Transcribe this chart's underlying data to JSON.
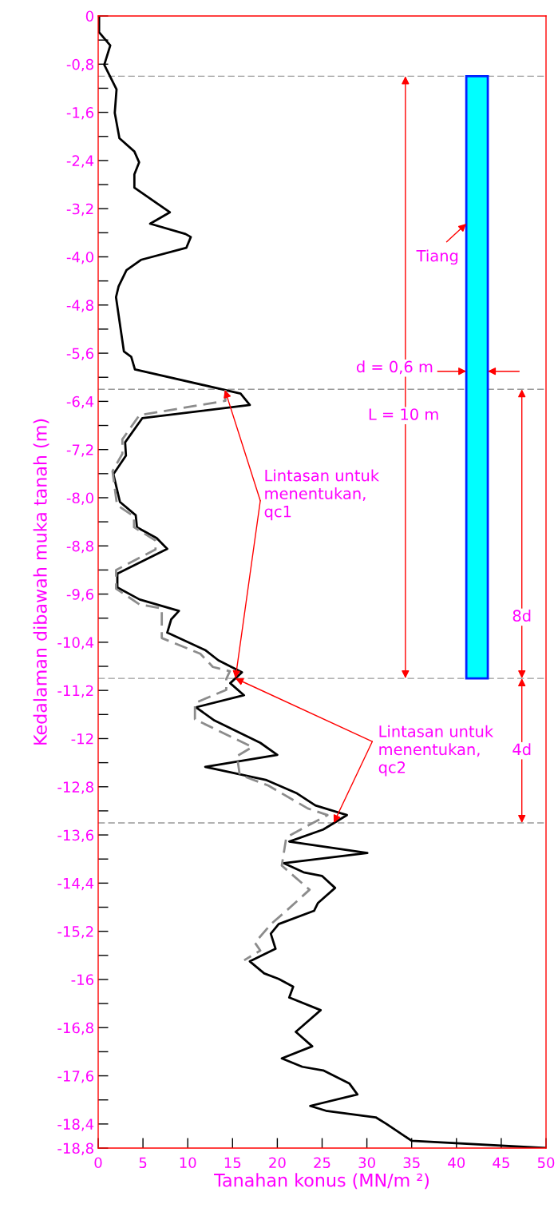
{
  "chart_data": {
    "type": "line",
    "xlabel": "Tanahan konus (MN/m ²)",
    "ylabel": "Kedalaman dibawah muka tanah (m)",
    "xlim": [
      0,
      50
    ],
    "xticks": [
      0,
      5,
      10,
      15,
      20,
      25,
      30,
      35,
      40,
      45,
      50
    ],
    "ylim": [
      -18.8,
      0
    ],
    "yticks": [
      {
        "value": 0,
        "label": "0"
      },
      {
        "value": -0.8,
        "label": "-0,8"
      },
      {
        "value": -1.6,
        "label": "-1,6"
      },
      {
        "value": -2.4,
        "label": "-2,4"
      },
      {
        "value": -3.2,
        "label": "-3,2"
      },
      {
        "value": -4.0,
        "label": "-4,0"
      },
      {
        "value": -4.8,
        "label": "-4,8"
      },
      {
        "value": -5.6,
        "label": "-5,6"
      },
      {
        "value": -6.4,
        "label": "-6,4"
      },
      {
        "value": -7.2,
        "label": "-7,2"
      },
      {
        "value": -8.0,
        "label": "-8,0"
      },
      {
        "value": -8.8,
        "label": "-8,8"
      },
      {
        "value": -9.6,
        "label": "-9,6"
      },
      {
        "value": -10.4,
        "label": "-10,4"
      },
      {
        "value": -11.2,
        "label": "-11,2"
      },
      {
        "value": -12,
        "label": "-12"
      },
      {
        "value": -12.8,
        "label": "-12,8"
      },
      {
        "value": -13.6,
        "label": "-13,6"
      },
      {
        "value": -14.4,
        "label": "-14,4"
      },
      {
        "value": -15.2,
        "label": "-15,2"
      },
      {
        "value": -16,
        "label": "-16"
      },
      {
        "value": -16.8,
        "label": "-16,8"
      },
      {
        "value": -17.6,
        "label": "-17,6"
      },
      {
        "value": -18.4,
        "label": "-18,4"
      },
      {
        "value": -18.8,
        "label": "-18,8"
      },
      {
        "value": -0.4,
        "label": null
      },
      {
        "value": -1.2,
        "label": null
      },
      {
        "value": -2.0,
        "label": null
      },
      {
        "value": -2.8,
        "label": null
      },
      {
        "value": -3.6,
        "label": null
      },
      {
        "value": -4.4,
        "label": null
      },
      {
        "value": -5.2,
        "label": null
      },
      {
        "value": -6.0,
        "label": null
      },
      {
        "value": -6.8,
        "label": null
      },
      {
        "value": -7.6,
        "label": null
      },
      {
        "value": -8.4,
        "label": null
      },
      {
        "value": -9.2,
        "label": null
      },
      {
        "value": -10.0,
        "label": null
      },
      {
        "value": -10.8,
        "label": null
      },
      {
        "value": -11.6,
        "label": null
      },
      {
        "value": -12.4,
        "label": null
      },
      {
        "value": -13.2,
        "label": null
      },
      {
        "value": -14.0,
        "label": null
      },
      {
        "value": -14.8,
        "label": null
      },
      {
        "value": -15.6,
        "label": null
      },
      {
        "value": -16.4,
        "label": null
      },
      {
        "value": -17.2,
        "label": null
      },
      {
        "value": -18.0,
        "label": null
      }
    ],
    "grid": false,
    "marker": "none",
    "series": [
      {
        "color": "#000000",
        "line_style": "solid",
        "x": [
          0.1,
          0.1,
          1.35,
          0.68,
          2.05,
          1.85,
          2.37,
          4.04,
          4.57,
          4.04,
          4.04,
          8.0,
          5.8,
          9.75,
          10.34,
          9.84,
          4.77,
          3.16,
          2.28,
          1.99,
          2.87,
          3.69,
          4.1,
          14.15,
          15.9,
          16.93,
          4.92,
          3.01,
          3.1,
          1.7,
          2.43,
          4.19,
          4.33,
          6.53,
          7.71,
          2.14,
          2.14,
          4.63,
          9.02,
          8.15,
          7.71,
          11.95,
          13.42,
          16.05,
          14.74,
          16.28,
          10.92,
          12.98,
          18.1,
          20.0,
          11.95,
          18.8,
          22.2,
          24.25,
          27.77,
          25.13,
          21.33,
          30.05,
          20.74,
          22.93,
          24.98,
          26.45,
          24.54,
          24.1,
          20.15,
          19.27,
          19.8,
          16.93,
          18.54,
          20.15,
          21.77,
          21.33,
          24.84,
          22.06,
          23.9,
          20.5,
          22.79,
          25.13,
          28.06,
          28.94,
          23.67,
          25.43,
          30.99,
          32.2,
          35.0,
          50
        ],
        "values": [
          0,
          -0.27,
          -0.49,
          -0.81,
          -1.22,
          -1.61,
          -2.03,
          -2.25,
          -2.43,
          -2.63,
          -2.85,
          -3.26,
          -3.45,
          -3.62,
          -3.67,
          -3.85,
          -4.05,
          -4.22,
          -4.49,
          -4.67,
          -5.57,
          -5.66,
          -5.87,
          -6.21,
          -6.27,
          -6.46,
          -6.68,
          -7.08,
          -7.3,
          -7.61,
          -8.07,
          -8.29,
          -8.49,
          -8.67,
          -8.85,
          -9.26,
          -9.49,
          -9.69,
          -9.88,
          -10.02,
          -10.24,
          -10.53,
          -10.7,
          -10.9,
          -11.08,
          -11.28,
          -11.48,
          -11.7,
          -12.07,
          -12.27,
          -12.47,
          -12.69,
          -12.91,
          -13.11,
          -13.27,
          -13.51,
          -13.71,
          -13.9,
          -14.07,
          -14.22,
          -14.28,
          -14.48,
          -14.73,
          -14.86,
          -15.08,
          -15.24,
          -15.49,
          -15.7,
          -15.9,
          -15.99,
          -16.12,
          -16.3,
          -16.51,
          -16.87,
          -17.11,
          -17.31,
          -17.45,
          -17.51,
          -17.73,
          -17.91,
          -18.1,
          -18.18,
          -18.29,
          -18.4,
          -18.68,
          -18.8
        ]
      },
      {
        "color": "#8c8c8c",
        "line_style": "dashed",
        "x": [
          14.2,
          14.2,
          4.6,
          2.7,
          2.7,
          1.6,
          2.1,
          4.0,
          4.0,
          6.4,
          6.4,
          2.0,
          2.0,
          4.6,
          7.1,
          7.1,
          11.4,
          12.8,
          14.7,
          14.3,
          14.3,
          10.8,
          10.8,
          17.2,
          15.5,
          15.8,
          19.0,
          23.4,
          25.6,
          21.0,
          20.5,
          23.6,
          21.0,
          19.3,
          17.5,
          18.1,
          16.3
        ],
        "values": [
          -6.21,
          -6.39,
          -6.63,
          -7.03,
          -7.27,
          -7.56,
          -8.12,
          -8.31,
          -8.49,
          -8.71,
          -8.86,
          -9.2,
          -9.51,
          -9.77,
          -9.84,
          -10.33,
          -10.59,
          -10.81,
          -10.88,
          -11.01,
          -11.19,
          -11.41,
          -11.68,
          -12.14,
          -12.29,
          -12.6,
          -12.78,
          -13.16,
          -13.27,
          -13.64,
          -14.11,
          -14.51,
          -14.86,
          -15.08,
          -15.39,
          -15.52,
          -15.68
        ]
      }
    ],
    "ref_lines": [
      {
        "axis": "y",
        "value": -1.0,
        "color": "#999999",
        "line_style": "dashed"
      },
      {
        "axis": "y",
        "value": -6.2,
        "color": "#999999",
        "line_style": "dashed"
      },
      {
        "axis": "y",
        "value": -11.0,
        "color": "#999999",
        "line_style": "dashed"
      },
      {
        "axis": "y",
        "value": -13.4,
        "color": "#999999",
        "line_style": "dashed"
      }
    ],
    "annotations": [
      "Tiang",
      "d = 0,6 m",
      "L = 10 m",
      "8d",
      "4d",
      {
        "text": "Lintasan untuk\nmenentukan,\nqc1",
        "x": 14.15,
        "y": -6.21
      },
      {
        "text": "Lintasan untuk\nmenentukan,\nqc2",
        "x": 26.3,
        "y": -13.4
      }
    ]
  }
}
